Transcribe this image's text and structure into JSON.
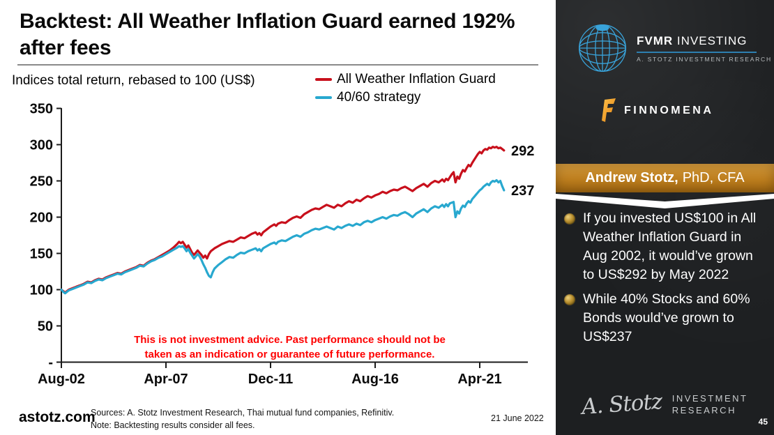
{
  "header": {
    "title": "Backtest: All Weather Inflation Guard earned 192% after fees"
  },
  "chart_data": {
    "type": "line",
    "title": "Indices total return, rebased to 100 (US$)",
    "legend_position": "top-right",
    "grid": false,
    "ylim": [
      0,
      350
    ],
    "x_note": "x = months since Aug-2002 (0) through May-2022 (237)",
    "y_ticks": [
      {
        "value": 350,
        "label": "350"
      },
      {
        "value": 300,
        "label": "300"
      },
      {
        "value": 250,
        "label": "250"
      },
      {
        "value": 200,
        "label": "200"
      },
      {
        "value": 150,
        "label": "150"
      },
      {
        "value": 100,
        "label": "100"
      },
      {
        "value": 50,
        "label": "50"
      },
      {
        "value": 0,
        "label": "-"
      }
    ],
    "x_ticks": [
      {
        "month": 0,
        "label": "Aug-02"
      },
      {
        "month": 56,
        "label": "Apr-07"
      },
      {
        "month": 112,
        "label": "Dec-11"
      },
      {
        "month": 168,
        "label": "Aug-16"
      },
      {
        "month": 224,
        "label": "Apr-21"
      }
    ],
    "series": [
      {
        "name": "All Weather Inflation Guard",
        "color": "#c8101c",
        "end_label": "292",
        "final_value": 292,
        "points": [
          [
            0,
            100
          ],
          [
            1,
            98
          ],
          [
            2,
            96
          ],
          [
            3,
            98
          ],
          [
            4,
            100
          ],
          [
            6,
            102
          ],
          [
            8,
            104
          ],
          [
            10,
            106
          ],
          [
            12,
            108
          ],
          [
            14,
            111
          ],
          [
            16,
            110
          ],
          [
            18,
            113
          ],
          [
            20,
            115
          ],
          [
            22,
            114
          ],
          [
            24,
            117
          ],
          [
            26,
            119
          ],
          [
            28,
            121
          ],
          [
            30,
            123
          ],
          [
            32,
            122
          ],
          [
            34,
            125
          ],
          [
            36,
            127
          ],
          [
            38,
            129
          ],
          [
            40,
            131
          ],
          [
            42,
            134
          ],
          [
            44,
            133
          ],
          [
            46,
            137
          ],
          [
            48,
            140
          ],
          [
            50,
            142
          ],
          [
            52,
            145
          ],
          [
            54,
            148
          ],
          [
            56,
            151
          ],
          [
            58,
            154
          ],
          [
            60,
            158
          ],
          [
            62,
            163
          ],
          [
            63,
            166
          ],
          [
            64,
            164
          ],
          [
            65,
            166
          ],
          [
            66,
            162
          ],
          [
            67,
            158
          ],
          [
            68,
            161
          ],
          [
            69,
            156
          ],
          [
            70,
            151
          ],
          [
            71,
            148
          ],
          [
            72,
            151
          ],
          [
            73,
            154
          ],
          [
            74,
            151
          ],
          [
            75,
            148
          ],
          [
            76,
            144
          ],
          [
            77,
            147
          ],
          [
            78,
            143
          ],
          [
            79,
            149
          ],
          [
            80,
            153
          ],
          [
            82,
            157
          ],
          [
            84,
            160
          ],
          [
            86,
            163
          ],
          [
            88,
            165
          ],
          [
            90,
            167
          ],
          [
            92,
            166
          ],
          [
            94,
            169
          ],
          [
            96,
            172
          ],
          [
            98,
            171
          ],
          [
            100,
            174
          ],
          [
            102,
            177
          ],
          [
            104,
            179
          ],
          [
            105,
            176
          ],
          [
            106,
            178
          ],
          [
            107,
            175
          ],
          [
            108,
            179
          ],
          [
            110,
            183
          ],
          [
            112,
            187
          ],
          [
            114,
            190
          ],
          [
            115,
            188
          ],
          [
            116,
            191
          ],
          [
            118,
            193
          ],
          [
            120,
            192
          ],
          [
            122,
            196
          ],
          [
            124,
            199
          ],
          [
            126,
            201
          ],
          [
            128,
            199
          ],
          [
            130,
            204
          ],
          [
            132,
            207
          ],
          [
            134,
            210
          ],
          [
            136,
            212
          ],
          [
            138,
            211
          ],
          [
            140,
            214
          ],
          [
            142,
            217
          ],
          [
            144,
            215
          ],
          [
            146,
            213
          ],
          [
            148,
            217
          ],
          [
            150,
            215
          ],
          [
            152,
            219
          ],
          [
            154,
            222
          ],
          [
            156,
            220
          ],
          [
            158,
            224
          ],
          [
            160,
            222
          ],
          [
            162,
            226
          ],
          [
            164,
            229
          ],
          [
            166,
            227
          ],
          [
            168,
            230
          ],
          [
            170,
            232
          ],
          [
            172,
            235
          ],
          [
            174,
            233
          ],
          [
            176,
            236
          ],
          [
            178,
            238
          ],
          [
            180,
            237
          ],
          [
            182,
            240
          ],
          [
            184,
            242
          ],
          [
            186,
            239
          ],
          [
            188,
            236
          ],
          [
            190,
            240
          ],
          [
            192,
            243
          ],
          [
            194,
            246
          ],
          [
            196,
            242
          ],
          [
            198,
            247
          ],
          [
            200,
            250
          ],
          [
            202,
            248
          ],
          [
            204,
            252
          ],
          [
            205,
            249
          ],
          [
            206,
            253
          ],
          [
            207,
            251
          ],
          [
            208,
            255
          ],
          [
            209,
            259
          ],
          [
            210,
            262
          ],
          [
            211,
            248
          ],
          [
            212,
            256
          ],
          [
            213,
            253
          ],
          [
            214,
            260
          ],
          [
            215,
            265
          ],
          [
            216,
            263
          ],
          [
            217,
            268
          ],
          [
            218,
            272
          ],
          [
            219,
            270
          ],
          [
            220,
            275
          ],
          [
            221,
            279
          ],
          [
            222,
            283
          ],
          [
            223,
            287
          ],
          [
            224,
            290
          ],
          [
            225,
            288
          ],
          [
            226,
            292
          ],
          [
            227,
            294
          ],
          [
            228,
            293
          ],
          [
            229,
            296
          ],
          [
            230,
            295
          ],
          [
            231,
            297
          ],
          [
            232,
            296
          ],
          [
            233,
            297
          ],
          [
            234,
            295
          ],
          [
            235,
            296
          ],
          [
            236,
            294
          ],
          [
            237,
            292
          ]
        ]
      },
      {
        "name": "40/60 strategy",
        "color": "#28a8cf",
        "end_label": "237",
        "final_value": 237,
        "points": [
          [
            0,
            100
          ],
          [
            1,
            97
          ],
          [
            2,
            95
          ],
          [
            3,
            97
          ],
          [
            4,
            99
          ],
          [
            6,
            101
          ],
          [
            8,
            103
          ],
          [
            10,
            105
          ],
          [
            12,
            107
          ],
          [
            14,
            110
          ],
          [
            16,
            109
          ],
          [
            18,
            112
          ],
          [
            20,
            114
          ],
          [
            22,
            113
          ],
          [
            24,
            116
          ],
          [
            26,
            118
          ],
          [
            28,
            120
          ],
          [
            30,
            122
          ],
          [
            32,
            121
          ],
          [
            34,
            124
          ],
          [
            36,
            126
          ],
          [
            38,
            128
          ],
          [
            40,
            130
          ],
          [
            42,
            133
          ],
          [
            44,
            132
          ],
          [
            46,
            136
          ],
          [
            48,
            139
          ],
          [
            50,
            141
          ],
          [
            52,
            144
          ],
          [
            54,
            146
          ],
          [
            56,
            149
          ],
          [
            58,
            152
          ],
          [
            60,
            155
          ],
          [
            62,
            158
          ],
          [
            63,
            160
          ],
          [
            64,
            159
          ],
          [
            65,
            160
          ],
          [
            66,
            157
          ],
          [
            67,
            153
          ],
          [
            68,
            156
          ],
          [
            69,
            151
          ],
          [
            70,
            147
          ],
          [
            71,
            143
          ],
          [
            72,
            146
          ],
          [
            73,
            149
          ],
          [
            74,
            146
          ],
          [
            75,
            141
          ],
          [
            76,
            135
          ],
          [
            77,
            130
          ],
          [
            78,
            124
          ],
          [
            79,
            119
          ],
          [
            80,
            117
          ],
          [
            81,
            124
          ],
          [
            82,
            129
          ],
          [
            84,
            134
          ],
          [
            86,
            138
          ],
          [
            88,
            142
          ],
          [
            90,
            145
          ],
          [
            92,
            144
          ],
          [
            94,
            148
          ],
          [
            96,
            151
          ],
          [
            98,
            150
          ],
          [
            100,
            153
          ],
          [
            102,
            155
          ],
          [
            104,
            157
          ],
          [
            105,
            154
          ],
          [
            106,
            156
          ],
          [
            107,
            153
          ],
          [
            108,
            157
          ],
          [
            110,
            160
          ],
          [
            112,
            163
          ],
          [
            114,
            165
          ],
          [
            115,
            163
          ],
          [
            116,
            166
          ],
          [
            118,
            168
          ],
          [
            120,
            167
          ],
          [
            122,
            170
          ],
          [
            124,
            173
          ],
          [
            126,
            175
          ],
          [
            128,
            173
          ],
          [
            130,
            177
          ],
          [
            132,
            179
          ],
          [
            134,
            182
          ],
          [
            136,
            184
          ],
          [
            138,
            183
          ],
          [
            140,
            185
          ],
          [
            142,
            187
          ],
          [
            144,
            185
          ],
          [
            146,
            183
          ],
          [
            148,
            187
          ],
          [
            150,
            185
          ],
          [
            152,
            188
          ],
          [
            154,
            190
          ],
          [
            156,
            188
          ],
          [
            158,
            191
          ],
          [
            160,
            189
          ],
          [
            162,
            193
          ],
          [
            164,
            195
          ],
          [
            166,
            193
          ],
          [
            168,
            196
          ],
          [
            170,
            198
          ],
          [
            172,
            200
          ],
          [
            174,
            198
          ],
          [
            176,
            201
          ],
          [
            178,
            203
          ],
          [
            180,
            202
          ],
          [
            182,
            205
          ],
          [
            184,
            207
          ],
          [
            186,
            204
          ],
          [
            188,
            200
          ],
          [
            190,
            205
          ],
          [
            192,
            208
          ],
          [
            194,
            211
          ],
          [
            196,
            207
          ],
          [
            198,
            212
          ],
          [
            200,
            215
          ],
          [
            202,
            213
          ],
          [
            204,
            217
          ],
          [
            205,
            214
          ],
          [
            206,
            218
          ],
          [
            207,
            215
          ],
          [
            208,
            219
          ],
          [
            209,
            220
          ],
          [
            210,
            221
          ],
          [
            211,
            200
          ],
          [
            212,
            208
          ],
          [
            213,
            205
          ],
          [
            214,
            212
          ],
          [
            215,
            216
          ],
          [
            216,
            214
          ],
          [
            217,
            219
          ],
          [
            218,
            222
          ],
          [
            219,
            220
          ],
          [
            220,
            225
          ],
          [
            221,
            228
          ],
          [
            222,
            231
          ],
          [
            223,
            234
          ],
          [
            224,
            237
          ],
          [
            225,
            239
          ],
          [
            226,
            242
          ],
          [
            227,
            244
          ],
          [
            228,
            246
          ],
          [
            229,
            244
          ],
          [
            230,
            248
          ],
          [
            231,
            250
          ],
          [
            232,
            249
          ],
          [
            233,
            251
          ],
          [
            234,
            248
          ],
          [
            235,
            250
          ],
          [
            236,
            243
          ],
          [
            237,
            237
          ]
        ]
      }
    ],
    "disclaimer": [
      "This is not investment advice. Past performance should not be",
      "taken as an indication or guarantee of future performance."
    ]
  },
  "footer": {
    "site": "astotz.com",
    "sources": "Sources: A. Stotz Investment Research, Thai mutual fund companies, Refinitiv.",
    "note": "Note: Backtesting results consider all fees.",
    "date": "21 June 2022"
  },
  "sidebar": {
    "fvmr": {
      "brand_bold": "FVMR",
      "brand_rest": " INVESTING",
      "subtitle": "A. STOTZ INVESTMENT RESEARCH"
    },
    "finnomena": {
      "label": "FINNOMENA"
    },
    "author": {
      "name": "Andrew Stotz,",
      "credentials": "PhD, CFA"
    },
    "bullets": [
      "If you invested US$100 in All Weather Inflation Guard in Aug 2002, it would’ve grown to US$292 by May 2022",
      "While 40% Stocks and 60% Bonds would’ve grown to US$237"
    ],
    "logo_script": "A. Stotz",
    "logo_line1": "INVESTMENT",
    "logo_line2": "RESEARCH",
    "page_number": "45"
  }
}
